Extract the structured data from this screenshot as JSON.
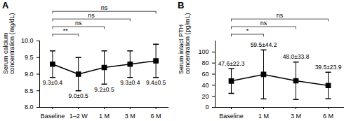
{
  "chart_data": [
    {
      "type": "line",
      "title": "A",
      "y_label": "Serum calcium concentration (mg/dL)",
      "categories": [
        "Baseline",
        "1–2 W",
        "1 M",
        "3 M",
        "6 M"
      ],
      "values": [
        9.3,
        9.0,
        9.2,
        9.3,
        9.4
      ],
      "errors": [
        0.4,
        0.5,
        0.5,
        0.4,
        0.5
      ],
      "value_labels": [
        "9.3±0.4",
        "9.0±0.5",
        "9.2±0.5",
        "9.3±0.4",
        "9.4±0.5"
      ],
      "data_labels": true,
      "color": "#000000",
      "marker": "square",
      "ylim": [
        8.0,
        10.0
      ],
      "yticks": [
        {
          "value": 8.0,
          "label": "8.0"
        },
        8.5,
        {
          "value": 9.0,
          "label": "9.0"
        },
        9.5,
        {
          "value": 10.0,
          "label": "10.0"
        }
      ],
      "comparisons": [
        {
          "from": "Baseline",
          "to": "1–2 W",
          "label": "**"
        },
        {
          "from": "Baseline",
          "to": "1 M",
          "label": "ns"
        },
        {
          "from": "Baseline",
          "to": "3 M",
          "label": "ns"
        },
        {
          "from": "Baseline",
          "to": "6 M",
          "label": "ns"
        }
      ]
    },
    {
      "type": "line",
      "title": "B",
      "y_label": "Serum intact PTH concentration (pg/mL)",
      "categories": [
        "Baseline",
        "1 M",
        "3 M",
        "6 M"
      ],
      "values": [
        47.6,
        59.5,
        48.0,
        39.5
      ],
      "errors": [
        22.3,
        44.2,
        33.8,
        23.9
      ],
      "value_labels": [
        "47.6±22.3",
        "59.5±44.2",
        "48.0±33.8",
        "39.5±23.9"
      ],
      "data_labels": true,
      "color": "#000000",
      "marker": "square",
      "ylim": [
        0,
        120
      ],
      "yticks": [
        0,
        20,
        40,
        60,
        80,
        100
      ],
      "comparisons": [
        {
          "from": "Baseline",
          "to": "1 M",
          "label": "*"
        },
        {
          "from": "Baseline",
          "to": "3 M",
          "label": "ns"
        },
        {
          "from": "Baseline",
          "to": "6 M",
          "label": "ns"
        }
      ]
    }
  ]
}
